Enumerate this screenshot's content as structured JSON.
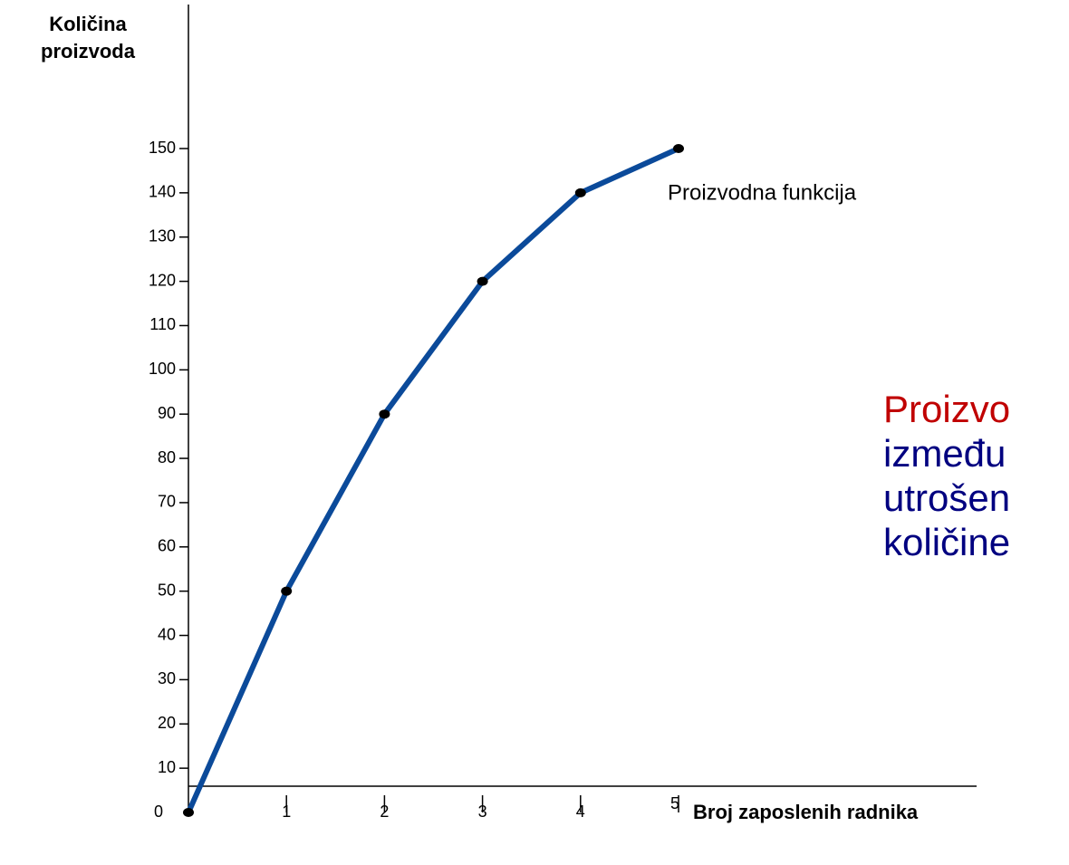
{
  "chart_data": {
    "type": "line",
    "y_label": [
      "Količina",
      "proizvoda"
    ],
    "x_label": "Broj zaposlenih radnika",
    "x": [
      0,
      1,
      2,
      3,
      4,
      5
    ],
    "series": [
      {
        "name": "Proizvodna funkcija",
        "color": "#0b4a9a",
        "values": [
          0,
          50,
          90,
          120,
          140,
          150
        ]
      }
    ],
    "xlim": [
      0,
      5
    ],
    "xticks": [
      0,
      1,
      2,
      3,
      4,
      5
    ],
    "ylim": [
      0,
      150
    ],
    "yticks": [
      10,
      20,
      30,
      40,
      50,
      60,
      70,
      80,
      90,
      100,
      110,
      120,
      130,
      140,
      150
    ],
    "side_text": [
      {
        "text": "Proizvo",
        "color": "#c00000"
      },
      {
        "text": "između",
        "color": "#000080"
      },
      {
        "text": "utrošen",
        "color": "#000080"
      },
      {
        "text": "količine",
        "color": "#000080"
      }
    ]
  }
}
